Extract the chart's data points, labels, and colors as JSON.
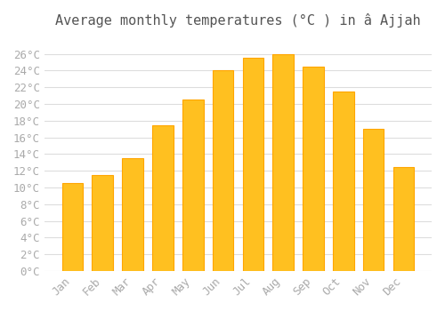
{
  "months": [
    "Jan",
    "Feb",
    "Mar",
    "Apr",
    "May",
    "Jun",
    "Jul",
    "Aug",
    "Sep",
    "Oct",
    "Nov",
    "Dec"
  ],
  "values": [
    10.5,
    11.5,
    13.5,
    17.5,
    20.5,
    24.0,
    25.5,
    26.0,
    24.5,
    21.5,
    17.0,
    12.5
  ],
  "bar_color": "#FFC020",
  "bar_edge_color": "#FFA500",
  "title": "Average monthly temperatures (°C ) in â Ajjah",
  "ylim": [
    0,
    28
  ],
  "ytick_step": 2,
  "background_color": "#ffffff",
  "grid_color": "#dddddd",
  "title_fontsize": 11,
  "tick_fontsize": 9,
  "font_family": "monospace"
}
